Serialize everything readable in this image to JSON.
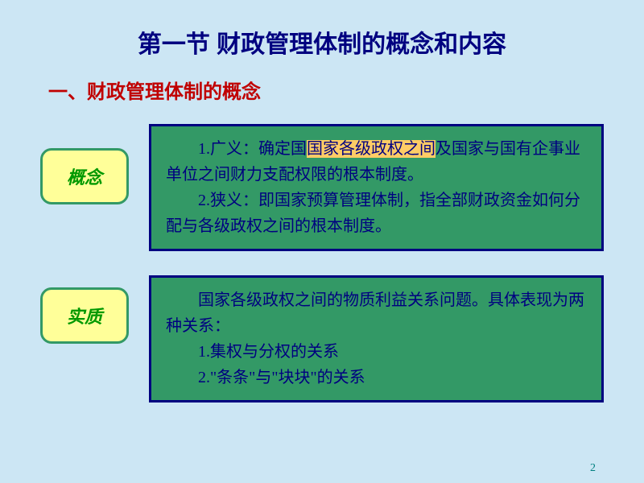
{
  "colors": {
    "slide_bg": "#cce6f4",
    "title_color": "#000080",
    "subtitle_color": "#c00000",
    "label_bg": "#ffff99",
    "label_border": "#339966",
    "label_text": "#009900",
    "content_bg": "#339966",
    "content_border": "#000080",
    "content_text": "#000080",
    "highlight_bg": "#ffcc66",
    "pagenum_color": "#008080"
  },
  "title": "第一节 财政管理体制的概念和内容",
  "subtitle": "一、财政管理体制的概念",
  "box1": {
    "label": "概念",
    "line1_a": "1.广义：确定国",
    "line1_hl": "国家各级政权之间",
    "line1_b": "及国家与国有企事业单位之间财力支配权限的根本制度。",
    "line2": "2.狭义：即国家预算管理体制，指全部财政资金如何分配与各级政权之间的根本制度。"
  },
  "box2": {
    "label": "实质",
    "line1": "国家各级政权之间的物质利益关系问题。具体表现为两种关系：",
    "line2": "1.集权与分权的关系",
    "line3": "2.\"条条\"与\"块块\"的关系"
  },
  "page_number": "2",
  "style": {
    "label_border_width": 3,
    "content_border_width": 3,
    "title_fontsize": 30,
    "subtitle_fontsize": 24,
    "label_fontsize": 22,
    "content_fontsize": 20
  }
}
